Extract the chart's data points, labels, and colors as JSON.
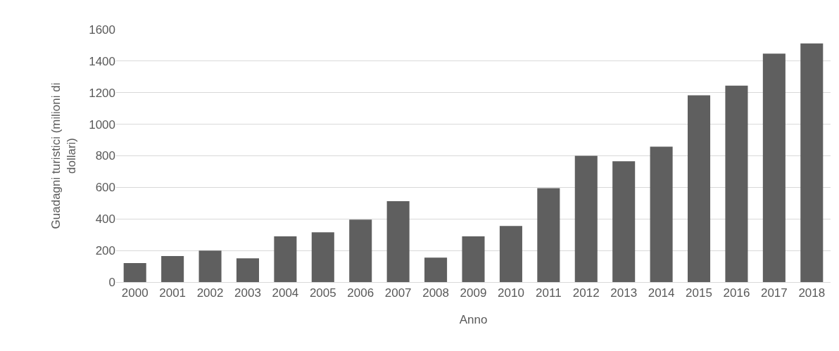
{
  "chart_data": {
    "type": "bar",
    "xlabel": "Anno",
    "ylabel": "Guadagni turistici (milioni di dollari)",
    "categories": [
      "2000",
      "2001",
      "2002",
      "2003",
      "2004",
      "2005",
      "2006",
      "2007",
      "2008",
      "2009",
      "2010",
      "2011",
      "2012",
      "2013",
      "2014",
      "2015",
      "2016",
      "2017",
      "2018"
    ],
    "values": [
      120,
      165,
      200,
      150,
      290,
      315,
      395,
      512,
      155,
      290,
      355,
      595,
      800,
      765,
      858,
      1183,
      1245,
      1447,
      1512
    ],
    "color": "#5f5f5f",
    "ylim": [
      0,
      1600
    ],
    "yticks": [
      0,
      200,
      400,
      600,
      800,
      1000,
      1200,
      1400,
      1600
    ],
    "grid": "y"
  }
}
